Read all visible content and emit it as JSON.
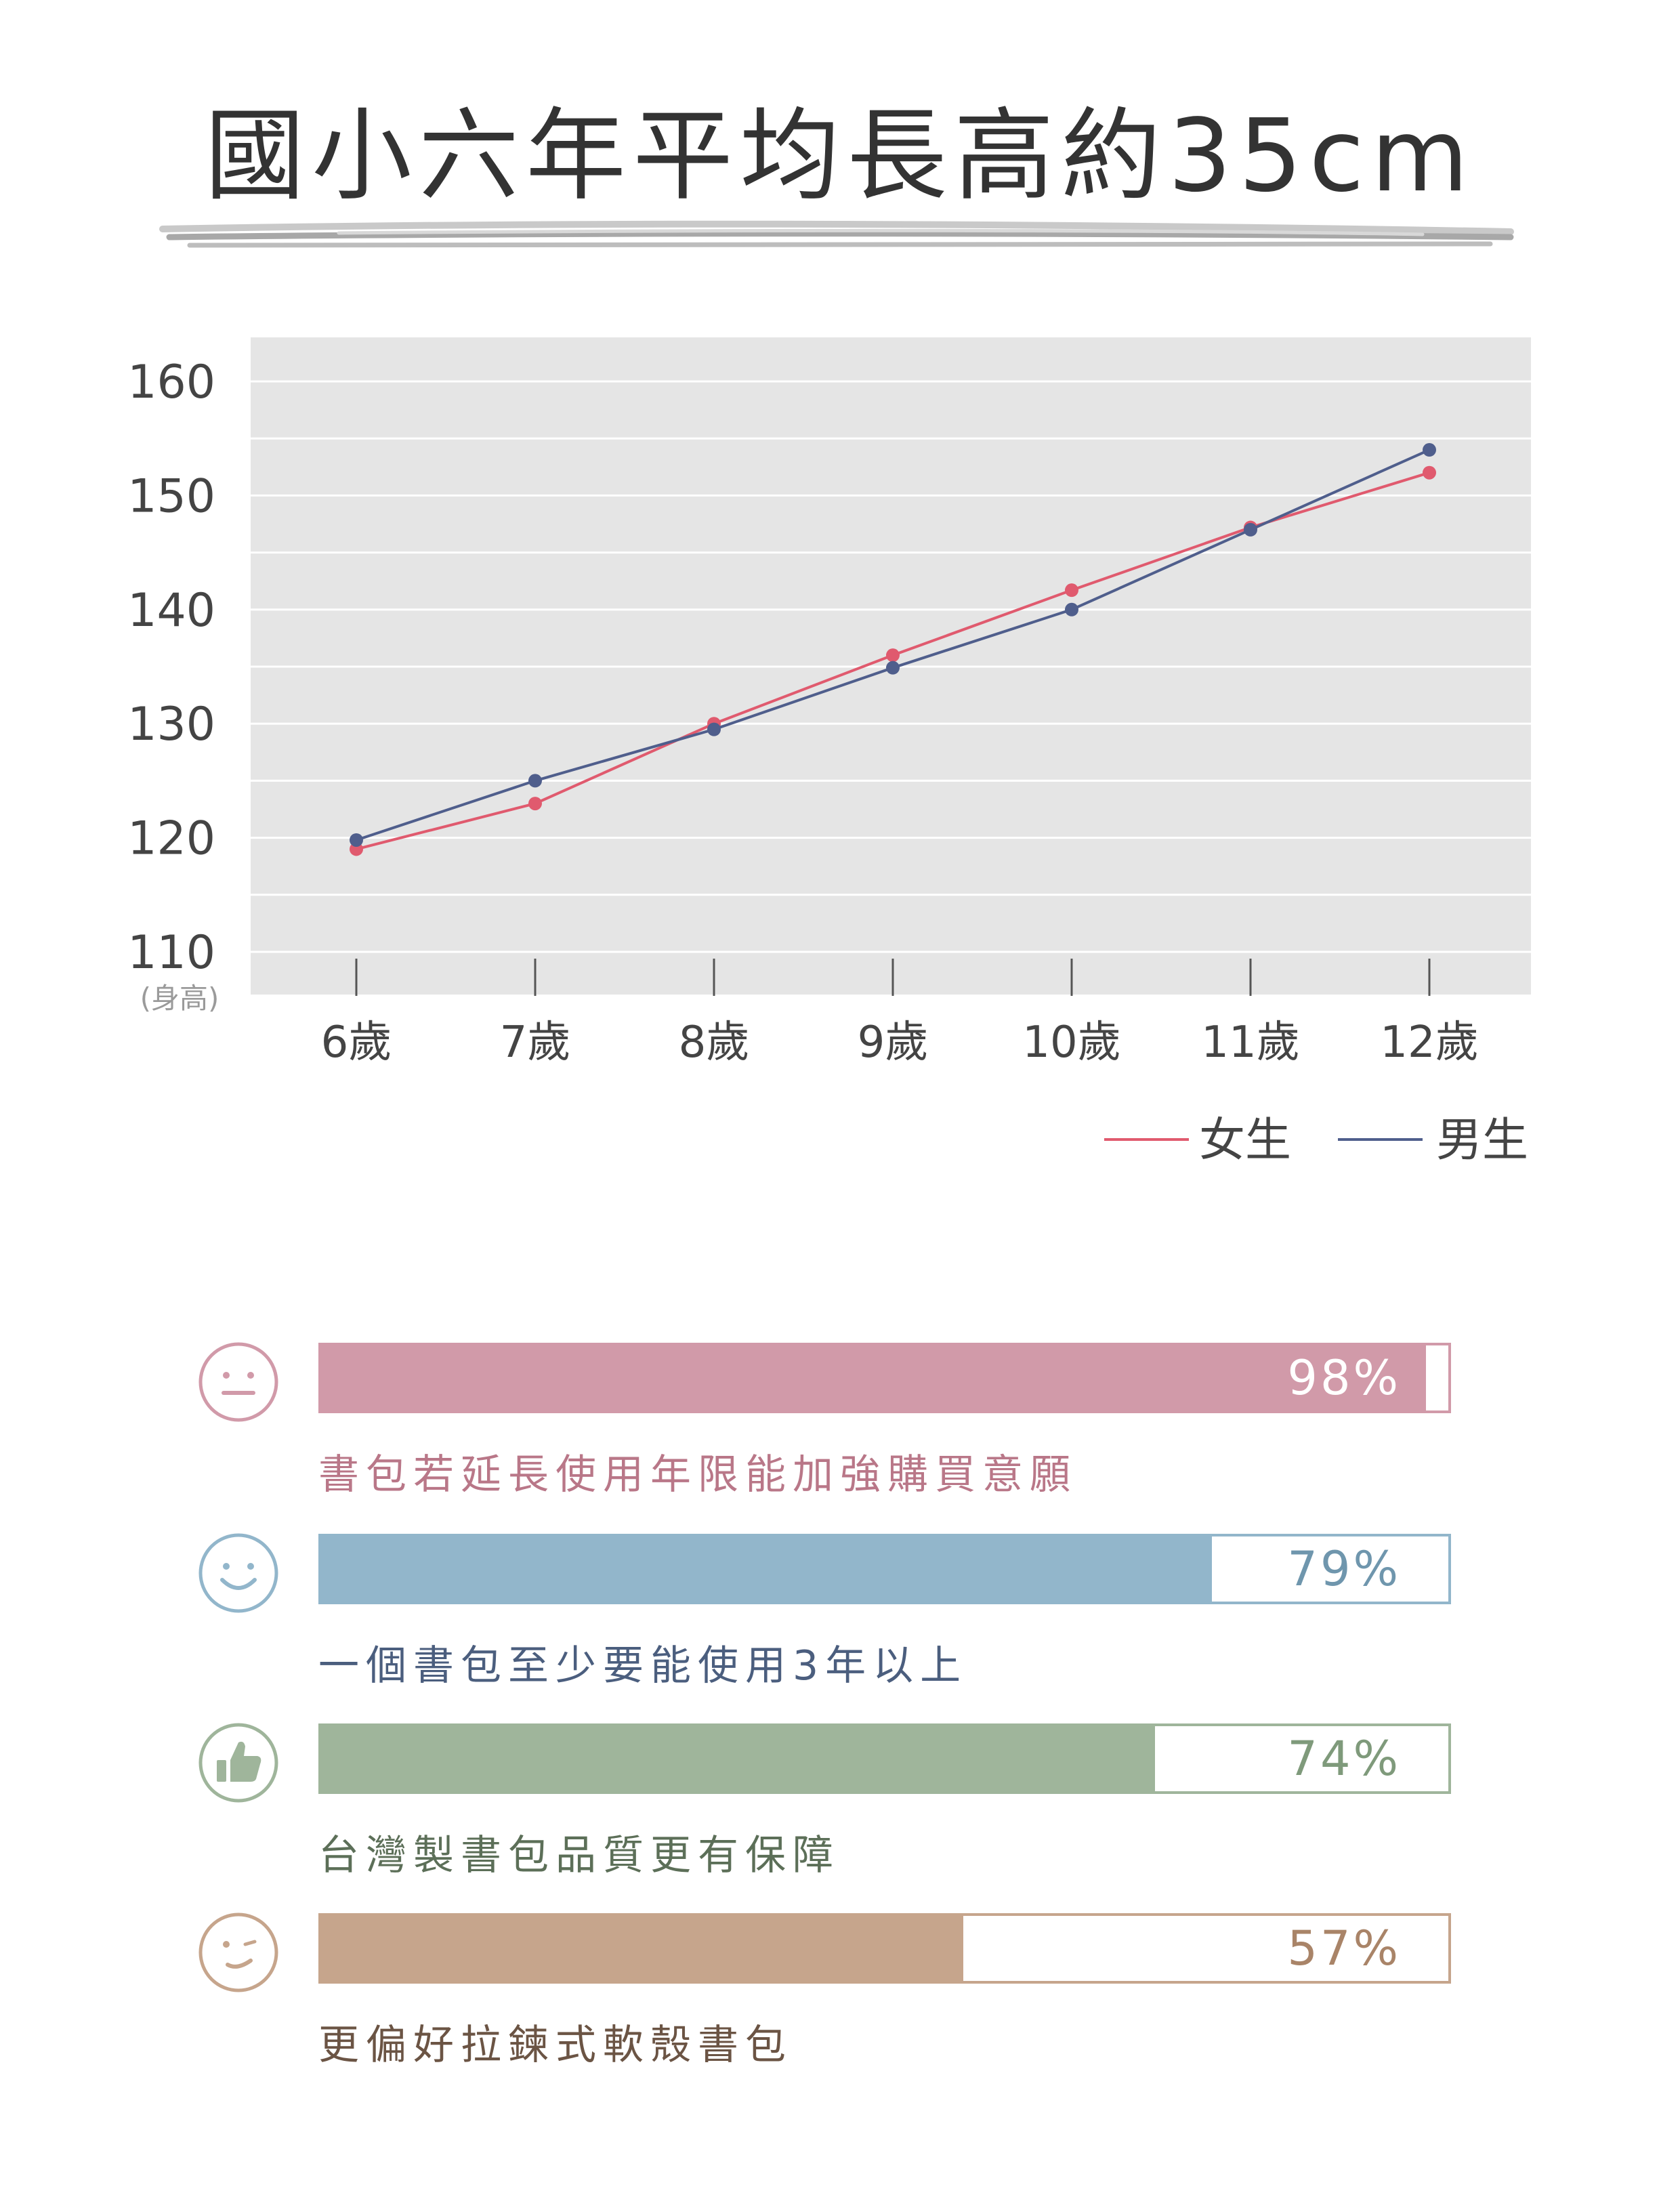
{
  "title": "國小六年平均長高約35cm",
  "chart_data": {
    "type": "line",
    "categories": [
      "6歲",
      "7歲",
      "8歲",
      "9歲",
      "10歲",
      "11歲",
      "12歲"
    ],
    "series": [
      {
        "name": "女生",
        "color": "#e05a6e",
        "values": [
          119.0,
          123.0,
          130.0,
          136.0,
          141.7,
          147.2,
          152.0
        ]
      },
      {
        "name": "男生",
        "color": "#4f5e8c",
        "values": [
          119.8,
          125.0,
          129.5,
          134.9,
          140.0,
          147.0,
          154.0
        ]
      }
    ],
    "yticks": [
      110,
      120,
      130,
      140,
      150,
      160
    ],
    "ylim": [
      108,
      164
    ],
    "ylabel": "(身高)",
    "grid": true,
    "legend_position": "bottom-right",
    "background_color": "#e5e5e5"
  },
  "stats": [
    {
      "percent": 98,
      "label": "98%",
      "caption": "書包若延長使用年限能加強購買意願",
      "color": "#d19aa9",
      "text_color": "#b97788",
      "icon": "neutral-face-icon"
    },
    {
      "percent": 79,
      "label": "79%",
      "caption": "一個書包至少要能使用3年以上",
      "color": "#92b6cb",
      "text_color": "#6f96ad",
      "icon": "smile-face-icon"
    },
    {
      "percent": 74,
      "label": "74%",
      "caption": "台灣製書包品質更有保障",
      "color": "#9fb59b",
      "text_color": "#7f9a7b",
      "icon": "thumbs-up-icon"
    },
    {
      "percent": 57,
      "label": "57%",
      "caption": "更偏好拉鍊式軟殼書包",
      "color": "#c6a58c",
      "text_color": "#a98468",
      "icon": "wink-face-icon"
    }
  ]
}
